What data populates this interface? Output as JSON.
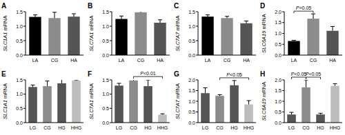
{
  "chart_data": [
    {
      "type": "bar",
      "title": "A",
      "y_label": "SLC1A1 mRNA",
      "categories": [
        "LA",
        "CG",
        "HA"
      ],
      "values": [
        1.32,
        1.28,
        1.33
      ],
      "errors": [
        0.07,
        0.2,
        0.1
      ],
      "colors": [
        "#000000",
        "#8c8c8c",
        "#555555"
      ],
      "ylim": [
        0,
        1.5
      ],
      "yticks": [
        {
          "value": 0,
          "label": "0.0"
        },
        0.5,
        {
          "value": 1,
          "label": "1.0"
        },
        1.5
      ],
      "annotations": []
    },
    {
      "type": "bar",
      "title": "B",
      "y_label": "SLC7A1 mRNA",
      "categories": [
        "LA",
        "CG",
        "HA"
      ],
      "values": [
        1.25,
        1.48,
        1.12
      ],
      "errors": [
        0.1,
        0.04,
        0.1
      ],
      "colors": [
        "#000000",
        "#8c8c8c",
        "#555555"
      ],
      "ylim": [
        0,
        1.5
      ],
      "yticks": [
        {
          "value": 0,
          "label": "0.0"
        },
        0.5,
        {
          "value": 1,
          "label": "1.0"
        },
        1.5
      ],
      "annotations": []
    },
    {
      "type": "bar",
      "title": "C",
      "y_label": "SLC7A7 mRNA",
      "categories": [
        "LA",
        "CG",
        "HA"
      ],
      "values": [
        1.33,
        1.28,
        1.1
      ],
      "errors": [
        0.06,
        0.06,
        0.08
      ],
      "colors": [
        "#000000",
        "#8c8c8c",
        "#555555"
      ],
      "ylim": [
        0,
        1.5
      ],
      "yticks": [
        {
          "value": 0,
          "label": "0.0"
        },
        0.5,
        {
          "value": 1,
          "label": "1.0"
        },
        1.5
      ],
      "annotations": []
    },
    {
      "type": "bar",
      "title": "D",
      "y_label": "SLC6A19 mRNA",
      "categories": [
        "LA",
        "CG",
        "HA"
      ],
      "values": [
        0.65,
        1.68,
        1.12
      ],
      "errors": [
        0.03,
        0.22,
        0.2
      ],
      "colors": [
        "#000000",
        "#8c8c8c",
        "#555555"
      ],
      "ylim": [
        0,
        2
      ],
      "yticks": [
        {
          "value": 0,
          "label": "0.0"
        },
        0.5,
        {
          "value": 1,
          "label": "1.0"
        },
        1.5,
        {
          "value": 2,
          "label": "2.0"
        }
      ],
      "annotations": [
        {
          "text": "P=0.05",
          "between": [
            "LA",
            "CG"
          ]
        }
      ]
    },
    {
      "type": "bar",
      "title": "E",
      "y_label": "SLC1A1 mRNA",
      "categories": [
        "LG",
        "CG",
        "HG",
        "HHG"
      ],
      "values": [
        1.25,
        1.28,
        1.38,
        1.48
      ],
      "errors": [
        0.07,
        0.18,
        0.15,
        0.02
      ],
      "colors": [
        "#555555",
        "#8c8c8c",
        "#555555",
        "#bdbdbd"
      ],
      "ylim": [
        0,
        1.5
      ],
      "yticks": [
        {
          "value": 0,
          "label": "0.0"
        },
        0.5,
        {
          "value": 1,
          "label": "1.0"
        },
        1.5
      ],
      "annotations": []
    },
    {
      "type": "bar",
      "title": "F",
      "y_label": "SLC7A1 mRNA",
      "categories": [
        "LG",
        "CG",
        "HG",
        "HHG"
      ],
      "values": [
        1.3,
        1.48,
        1.28,
        0.28
      ],
      "errors": [
        0.08,
        0.04,
        0.22,
        0.03
      ],
      "colors": [
        "#555555",
        "#8c8c8c",
        "#555555",
        "#bdbdbd"
      ],
      "ylim": [
        0,
        1.5
      ],
      "yticks": [
        {
          "value": 0,
          "label": "0.0"
        },
        0.5,
        {
          "value": 1,
          "label": "1.0"
        },
        1.5
      ],
      "annotations": [
        {
          "text": "P<0.01",
          "between": [
            "CG",
            "HHG"
          ]
        }
      ]
    },
    {
      "type": "bar",
      "title": "G",
      "y_label": "SLC7A7 mRNA",
      "categories": [
        "LG",
        "CG",
        "HG",
        "HHG"
      ],
      "values": [
        1.38,
        1.25,
        1.75,
        0.85
      ],
      "errors": [
        0.25,
        0.06,
        0.22,
        0.18
      ],
      "colors": [
        "#555555",
        "#8c8c8c",
        "#555555",
        "#bdbdbd"
      ],
      "ylim": [
        0,
        2
      ],
      "yticks": [
        {
          "value": 0,
          "label": "0.0"
        },
        0.5,
        {
          "value": 1,
          "label": "1.0"
        },
        1.5,
        {
          "value": 2,
          "label": "2.0"
        }
      ],
      "annotations": [
        {
          "text": "P<0.05",
          "between": [
            "CG",
            "HHG"
          ]
        }
      ]
    },
    {
      "type": "bar",
      "title": "H",
      "y_label": "SLC6A19 mRNA",
      "categories": [
        "LG",
        "CG",
        "HG",
        "HHG"
      ],
      "values": [
        0.38,
        1.65,
        0.38,
        1.72
      ],
      "errors": [
        0.1,
        0.35,
        0.06,
        0.1
      ],
      "colors": [
        "#555555",
        "#8c8c8c",
        "#555555",
        "#bdbdbd"
      ],
      "ylim": [
        0,
        2
      ],
      "yticks": [
        {
          "value": 0,
          "label": "0.0"
        },
        0.5,
        {
          "value": 1,
          "label": "1.0"
        },
        1.5,
        {
          "value": 2,
          "label": "2.0"
        }
      ],
      "annotations": [
        {
          "text": "P<0.05",
          "between": [
            "LG",
            "CG"
          ]
        },
        {
          "text": "P<0.05",
          "between": [
            "CG",
            "HG"
          ]
        }
      ]
    }
  ]
}
